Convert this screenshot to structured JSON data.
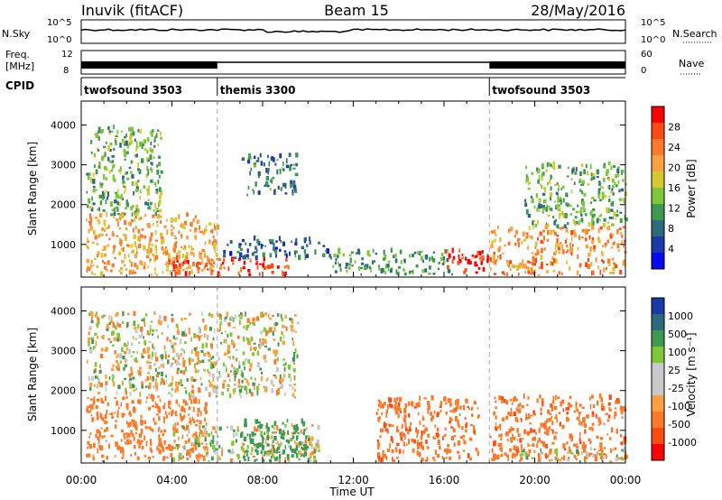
{
  "header": {
    "station": "Inuvik (fitACF)",
    "beam": "Beam 15",
    "date": "28/May/2016"
  },
  "panels": {
    "nsky_label": "N.Sky",
    "nsky_ticks": [
      "10^5",
      "10^0"
    ],
    "nsearch_label": "N.Search",
    "nsearch_ticks": [
      "10^5",
      "10^0"
    ],
    "freq_label_1": "Freq.",
    "freq_label_2": "[MHz]",
    "freq_ticks": [
      "12",
      "8"
    ],
    "nave_label": "Nave",
    "nave_ticks": [
      "60",
      "0"
    ],
    "cpid_label": "CPID",
    "cpid_segments": [
      {
        "name": "twofsound 3503",
        "start": 0,
        "end": 6
      },
      {
        "name": "themis 3300",
        "start": 6,
        "end": 18
      },
      {
        "name": "twofsound 3503",
        "start": 18,
        "end": 24
      }
    ]
  },
  "colorbars": {
    "power_title": "Power [dB]",
    "power_ticks": [
      "28",
      "24",
      "20",
      "16",
      "12",
      "8",
      "4"
    ],
    "power_colors": [
      "#ff0000",
      "#ff4a14",
      "#ff7a28",
      "#ffa040",
      "#d8c830",
      "#7cc838",
      "#3c9a50",
      "#2c6a80",
      "#1a3aa8",
      "#0a0af0"
    ],
    "velocity_title": "Velocity [m s⁻¹]",
    "velocity_ticks": [
      "1000",
      "500",
      "100",
      "25",
      "-25",
      "-100",
      "-500",
      "-1000"
    ],
    "velocity_colors": [
      "#1a3aa8",
      "#2c6a80",
      "#3c9a50",
      "#7cc838",
      "#c8c8c8",
      "#c8c8c8",
      "#ffa040",
      "#ff7a28",
      "#ff4a14",
      "#ff0000"
    ]
  },
  "chart_data": {
    "type": "heatmap",
    "xlabel": "Time UT",
    "x_ticks": [
      "00:00",
      "04:00",
      "08:00",
      "12:00",
      "16:00",
      "20:00",
      "00:00"
    ],
    "x_range_hours": [
      0,
      24
    ],
    "ylabel": "Slant Range [km]",
    "y_ticks": [
      1000,
      2000,
      3000,
      4000
    ],
    "y_range_km": [
      180,
      4600
    ],
    "power_panel_clusters": [
      {
        "t0": 0.2,
        "t1": 6.0,
        "r0": 200,
        "r1": 1700,
        "p": 20
      },
      {
        "t0": 0.2,
        "t1": 3.5,
        "r0": 1700,
        "r1": 3900,
        "p": 12
      },
      {
        "t0": 3.8,
        "t1": 9.2,
        "r0": 180,
        "r1": 600,
        "p": 27
      },
      {
        "t0": 6.0,
        "t1": 11.0,
        "r0": 600,
        "r1": 1100,
        "p": 6
      },
      {
        "t0": 7.0,
        "t1": 9.5,
        "r0": 2200,
        "r1": 3200,
        "p": 8
      },
      {
        "t0": 11.0,
        "t1": 16.5,
        "r0": 200,
        "r1": 800,
        "p": 10
      },
      {
        "t0": 16.0,
        "t1": 18.0,
        "r0": 250,
        "r1": 800,
        "p": 28
      },
      {
        "t0": 18.0,
        "t1": 24.0,
        "r0": 200,
        "r1": 1400,
        "p": 22
      },
      {
        "t0": 19.5,
        "t1": 24.0,
        "r0": 1400,
        "r1": 3000,
        "p": 12
      }
    ],
    "velocity_panel_clusters": [
      {
        "t0": 0.2,
        "t1": 5.5,
        "r0": 200,
        "r1": 1800,
        "v": -300
      },
      {
        "t0": 0.2,
        "t1": 9.5,
        "r0": 1800,
        "r1": 3900,
        "v": 0
      },
      {
        "t0": 4.0,
        "t1": 10.5,
        "r0": 180,
        "r1": 1100,
        "v": 0
      },
      {
        "t0": 7.0,
        "t1": 10.0,
        "r0": 200,
        "r1": 1200,
        "v": 300
      },
      {
        "t0": 13.0,
        "t1": 17.5,
        "r0": 200,
        "r1": 1800,
        "v": -400
      },
      {
        "t0": 18.0,
        "t1": 24.0,
        "r0": 200,
        "r1": 1800,
        "v": -400
      },
      {
        "t0": 19.0,
        "t1": 24.0,
        "r0": 180,
        "r1": 500,
        "v": 0
      }
    ]
  }
}
